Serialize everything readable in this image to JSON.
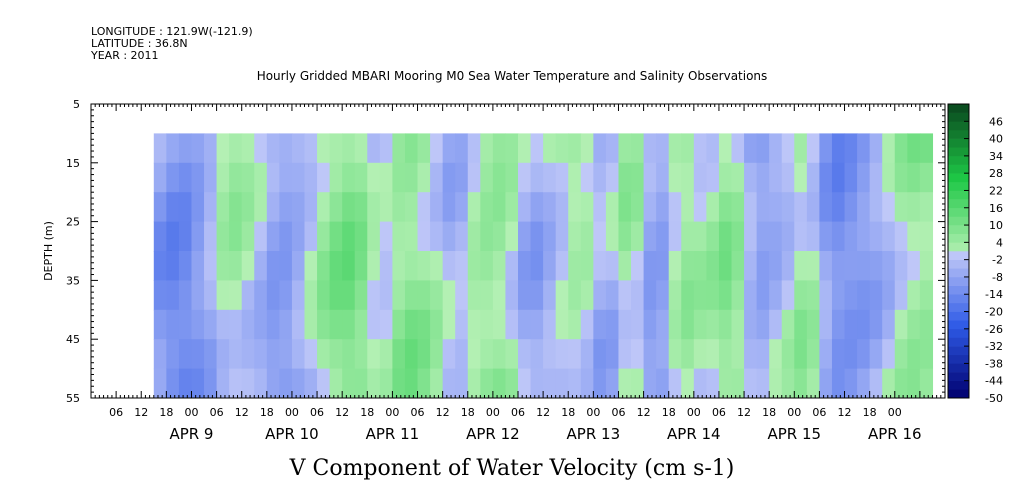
{
  "meta": {
    "longitude": "LONGITUDE : 121.9W(-121.9)",
    "latitude": "LATITUDE : 36.8N",
    "year": "YEAR : 2011"
  },
  "chart_data": {
    "type": "heatmap",
    "title": "Hourly Gridded MBARI Mooring M0 Sea Water Temperature and Salinity Observations",
    "xlabel": "V Component of Water Velocity (cm s-1)",
    "ylabel": "DEPTH (m)",
    "y_ticks": [
      "5",
      "15",
      "25",
      "35",
      "45",
      "55"
    ],
    "y_range": [
      5,
      55
    ],
    "y_reversed": true,
    "data_depth_range": [
      10,
      55
    ],
    "x_range": [
      "2011-04-08T00:00",
      "2011-04-16T12:00"
    ],
    "data_time_range": [
      "2011-04-08T15:00",
      "2011-04-16T09:00"
    ],
    "x_hour_labels": [
      "06",
      "12",
      "18",
      "00",
      "06",
      "12",
      "18",
      "00",
      "06",
      "12",
      "18",
      "00",
      "06",
      "12",
      "18",
      "00",
      "06",
      "12",
      "18",
      "00",
      "06",
      "12",
      "18",
      "00",
      "06",
      "12",
      "18",
      "00",
      "06",
      "12",
      "18",
      "00"
    ],
    "x_day_labels": [
      "APR  9",
      "APR 10",
      "APR 11",
      "APR 12",
      "APR 13",
      "APR 14",
      "APR 15",
      "APR 16"
    ],
    "colorbar_labels": [
      "46",
      "40",
      "34",
      "28",
      "22",
      "16",
      "10",
      "4",
      "-2",
      "-8",
      "-14",
      "-20",
      "-26",
      "-32",
      "-38",
      "-44",
      "-50"
    ],
    "colorbar_range": [
      -50,
      52
    ],
    "colorbar_step": 3,
    "colors": {
      "neg_deep": "#00006e",
      "neg_mid": "#2e5ae6",
      "neg_light": "#c0c8f8",
      "pos_light": "#b4f0b4",
      "pos_mid": "#1ec846",
      "pos_deep": "#0a461e"
    },
    "column_profile": [
      {
        "t": 0,
        "v": -8
      },
      {
        "t": 6,
        "v": -14
      },
      {
        "t": 12,
        "v": -8
      },
      {
        "t": 18,
        "v": 4
      },
      {
        "t": 24,
        "v": -2
      },
      {
        "t": 30,
        "v": -12
      },
      {
        "t": 36,
        "v": -6
      },
      {
        "t": 42,
        "v": 6
      },
      {
        "t": 48,
        "v": 10
      },
      {
        "t": 54,
        "v": -4
      },
      {
        "t": 60,
        "v": 8
      },
      {
        "t": 66,
        "v": 4
      },
      {
        "t": 72,
        "v": -6
      },
      {
        "t": 78,
        "v": 6
      },
      {
        "t": 84,
        "v": 6
      },
      {
        "t": 90,
        "v": -8
      },
      {
        "t": 96,
        "v": -2
      },
      {
        "t": 102,
        "v": 4
      },
      {
        "t": 108,
        "v": -8
      },
      {
        "t": 114,
        "v": 6
      },
      {
        "t": 120,
        "v": -14
      },
      {
        "t": 126,
        "v": 4
      },
      {
        "t": 132,
        "v": 0
      },
      {
        "t": 138,
        "v": 8
      },
      {
        "t": 144,
        "v": -10
      },
      {
        "t": 150,
        "v": -4
      },
      {
        "t": 156,
        "v": 6
      },
      {
        "t": 162,
        "v": -12
      },
      {
        "t": 168,
        "v": -10
      },
      {
        "t": 174,
        "v": -4
      },
      {
        "t": 180,
        "v": 6
      }
    ]
  }
}
